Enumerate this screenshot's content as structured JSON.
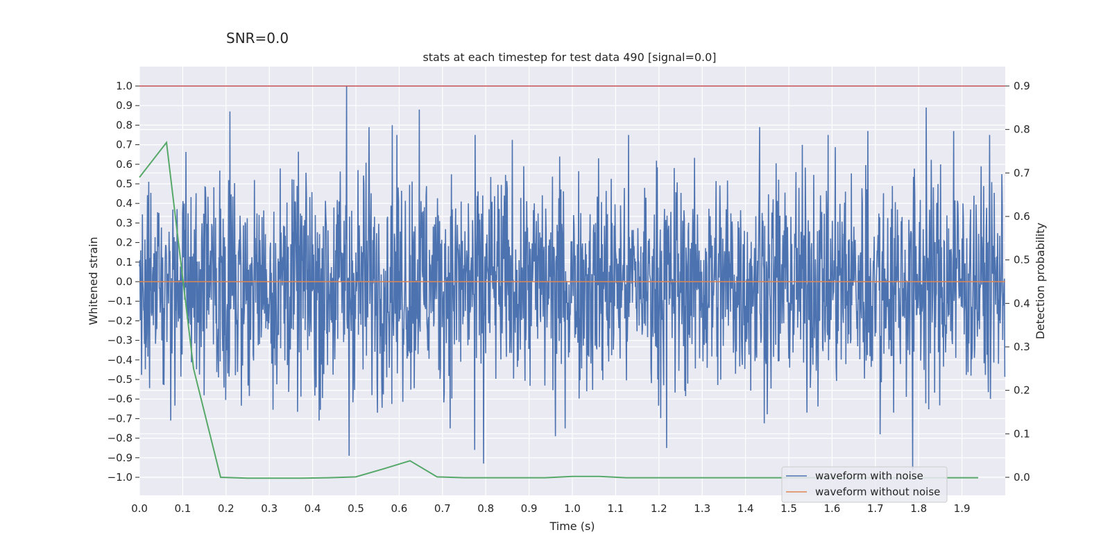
{
  "chart_data": {
    "type": "line",
    "suptitle": "SNR=0.0",
    "title": "stats at each timestep for test data 490 [signal=0.0]",
    "xlabel": "Time (s)",
    "ylabel_left": "Whitened strain",
    "ylabel_right": "Detection probability",
    "xlim": [
      0,
      2.0
    ],
    "ylim_left": [
      -1.1,
      1.1
    ],
    "ylim_right": [
      -0.04,
      0.94
    ],
    "x_ticks": [
      "0.0",
      "0.1",
      "0.2",
      "0.3",
      "0.4",
      "0.5",
      "0.6",
      "0.7",
      "0.8",
      "0.9",
      "1.0",
      "1.1",
      "1.2",
      "1.3",
      "1.4",
      "1.5",
      "1.6",
      "1.7",
      "1.8",
      "1.9"
    ],
    "y_ticks_left": [
      "1.0",
      "0.9",
      "0.8",
      "0.7",
      "0.6",
      "0.5",
      "0.4",
      "0.3",
      "0.2",
      "0.1",
      "0.0",
      "−0.1",
      "−0.2",
      "−0.3",
      "−0.4",
      "−0.5",
      "−0.6",
      "−0.7",
      "−0.8",
      "−0.9",
      "−1.0"
    ],
    "y_ticks_right": [
      "0.9",
      "0.8",
      "0.7",
      "0.6",
      "0.5",
      "0.4",
      "0.3",
      "0.2",
      "0.1",
      "0.0"
    ],
    "grid": true,
    "legend_position": "bottom-right",
    "series": [
      {
        "name": "waveform with noise",
        "axis": "left",
        "color": "#4c72b0",
        "noise_samples": 2048,
        "noise_std": 0.28,
        "peaks": [
          {
            "x": 0.479,
            "y": 1.0
          },
          {
            "x": 0.209,
            "y": 0.87
          },
          {
            "x": 0.647,
            "y": 0.88
          },
          {
            "x": 1.818,
            "y": 0.89
          },
          {
            "x": 0.531,
            "y": 0.79
          },
          {
            "x": 0.584,
            "y": 0.8
          },
          {
            "x": 1.433,
            "y": 0.79
          },
          {
            "x": 1.683,
            "y": 0.77
          },
          {
            "x": 1.882,
            "y": 0.77
          },
          {
            "x": 1.787,
            "y": -0.96
          },
          {
            "x": 0.795,
            "y": -0.93
          },
          {
            "x": 0.485,
            "y": -0.89
          },
          {
            "x": 1.218,
            "y": -0.85
          },
          {
            "x": 0.775,
            "y": -0.86
          },
          {
            "x": 1.712,
            "y": -0.78
          },
          {
            "x": 0.072,
            "y": -0.71
          },
          {
            "x": 0.415,
            "y": -0.71
          },
          {
            "x": 0.961,
            "y": -0.79
          }
        ]
      },
      {
        "name": "waveform without noise",
        "axis": "left",
        "color": "#dd8452",
        "x": [
          0.0,
          2.0
        ],
        "y": [
          0.0,
          0.0
        ]
      },
      {
        "name": "",
        "axis": "right",
        "color": "#55a868",
        "x": [
          0.0,
          0.0625,
          0.125,
          0.1875,
          0.25,
          0.3125,
          0.375,
          0.4375,
          0.5,
          0.5625,
          0.625,
          0.6875,
          0.75,
          0.8125,
          0.875,
          0.9375,
          1.0,
          1.0625,
          1.125,
          1.1875,
          1.25,
          1.3125,
          1.375,
          1.4375,
          1.5,
          1.5625,
          1.625,
          1.6875,
          1.75,
          1.8125,
          1.875,
          1.9375
        ],
        "y": [
          0.69,
          0.77,
          0.25,
          0.0,
          -0.002,
          -0.002,
          -0.002,
          -0.001,
          0.001,
          0.019,
          0.038,
          0.001,
          -0.001,
          -0.001,
          -0.001,
          -0.001,
          0.002,
          0.002,
          -0.001,
          -0.001,
          -0.001,
          -0.001,
          -0.001,
          -0.001,
          -0.001,
          -0.001,
          -0.001,
          -0.001,
          -0.001,
          -0.001,
          -0.001,
          -0.001
        ]
      },
      {
        "name": "",
        "axis": "left",
        "color": "#c44e52",
        "x": [
          0.0,
          2.0
        ],
        "y": [
          1.0,
          1.0
        ]
      }
    ]
  }
}
